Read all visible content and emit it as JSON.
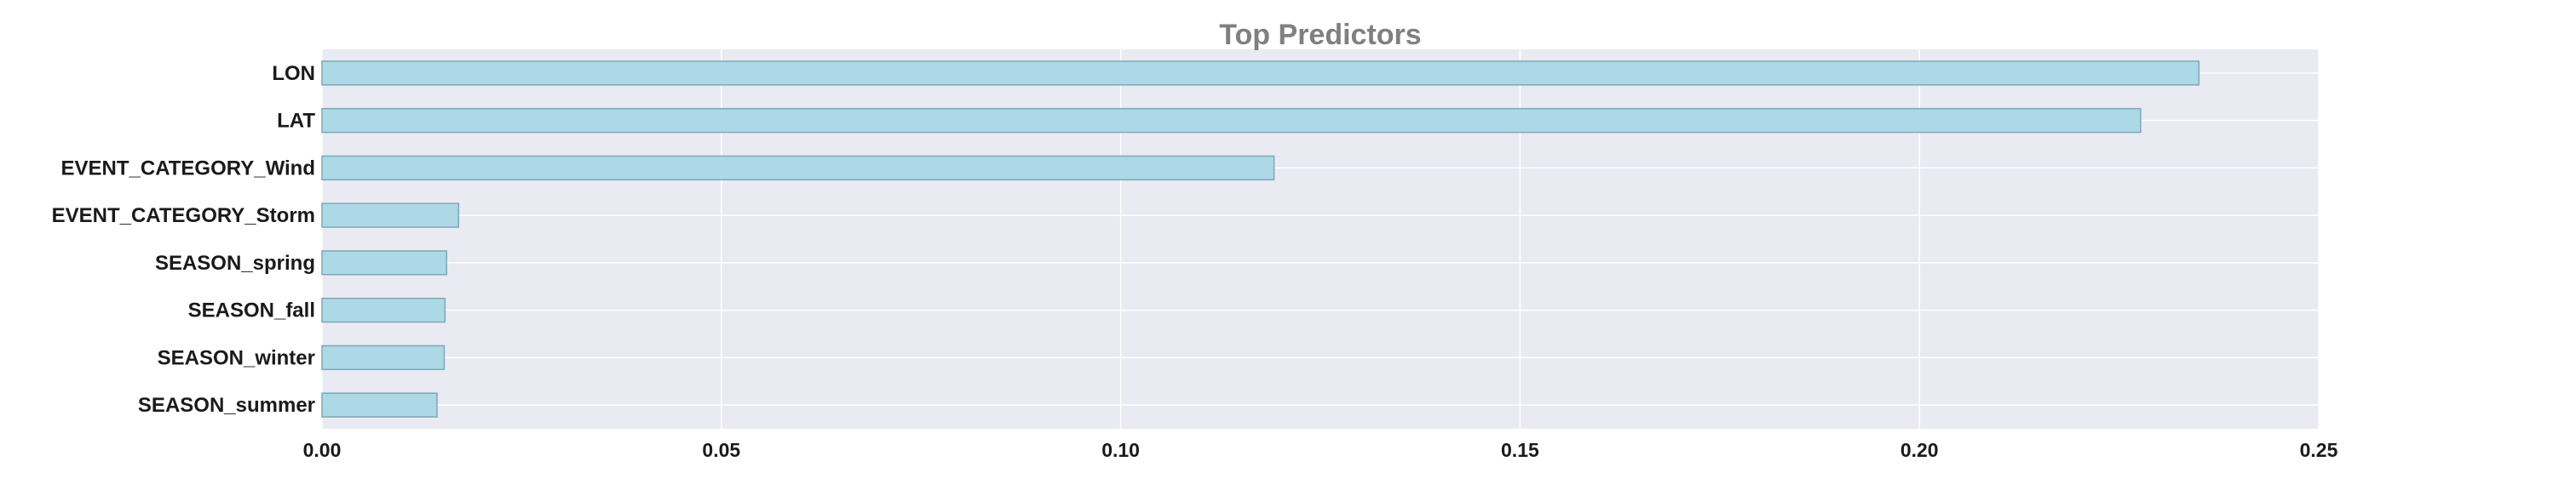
{
  "chart_data": {
    "type": "bar",
    "orientation": "horizontal",
    "title": "Top Predictors",
    "xlabel": "",
    "ylabel": "",
    "categories": [
      "LON",
      "LAT",
      "EVENT_CATEGORY_Wind",
      "EVENT_CATEGORY_Storm",
      "SEASON_spring",
      "SEASON_fall",
      "SEASON_winter",
      "SEASON_summer"
    ],
    "values": [
      0.235,
      0.2277,
      0.1192,
      0.0171,
      0.0156,
      0.0154,
      0.0153,
      0.0144
    ],
    "xlim": [
      0,
      0.25
    ],
    "xticks": [
      "0.00",
      "0.05",
      "0.10",
      "0.15",
      "0.20",
      "0.25"
    ],
    "grid": true,
    "legend": "none",
    "colors": {
      "bar_fill": "#add8e6",
      "bar_edge": "#7fa8b8",
      "plot_background": "#eaeaf2",
      "grid": "#ffffff",
      "title": "#808080",
      "text": "#1a1a1a"
    }
  }
}
